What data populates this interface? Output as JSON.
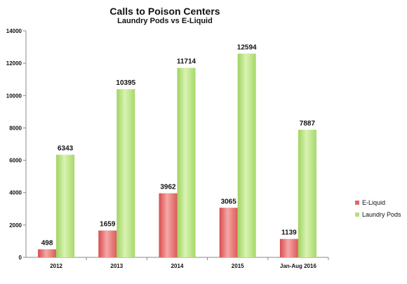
{
  "chart_data": {
    "type": "bar",
    "title": "Calls to Poison Centers",
    "subtitle": "Laundry Pods vs E-Liquid",
    "xlabel": "",
    "ylabel": "",
    "categories": [
      "2012",
      "2013",
      "2014",
      "2015",
      "Jan-Aug 2016"
    ],
    "series": [
      {
        "name": "E-Liquid",
        "values": [
          498,
          1659,
          3962,
          3065,
          1139
        ],
        "color": "#e06666"
      },
      {
        "name": "Laundry Pods",
        "values": [
          6343,
          10395,
          11714,
          12594,
          7887
        ],
        "color": "#b6e07a"
      }
    ],
    "ylim": [
      0,
      14000
    ],
    "yticks": [
      0,
      2000,
      4000,
      6000,
      8000,
      10000,
      12000,
      14000
    ],
    "grid": false,
    "legend": "right"
  }
}
